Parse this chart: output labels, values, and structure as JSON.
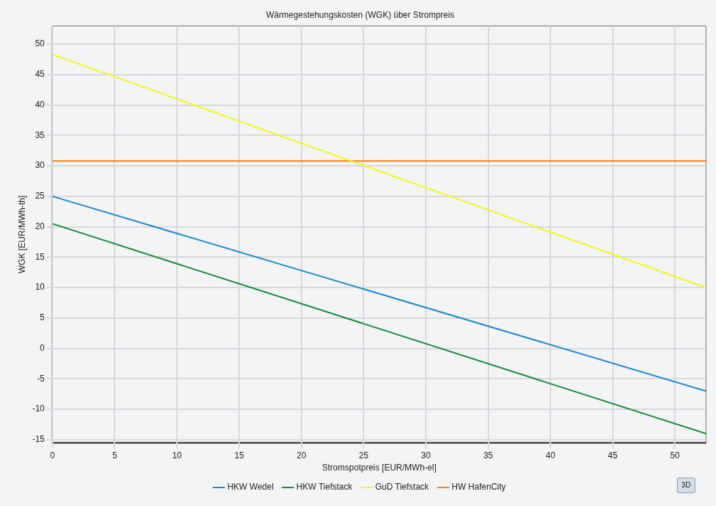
{
  "chart_data": {
    "type": "line",
    "title": "Wärmegestehungskosten (WGK) über Strompreis",
    "xlabel": "Stromspotpreis [EUR/MWh-el]",
    "ylabel": "WGK [EUR/MWh-th]",
    "x": [
      0,
      52.5
    ],
    "series": [
      {
        "name": "HKW Wedel",
        "color": "#1f88c9",
        "values": [
          25,
          -7
        ]
      },
      {
        "name": "HKW Tiefstack",
        "color": "#1a8a3c",
        "values": [
          20.5,
          -14
        ]
      },
      {
        "name": "GuD Tiefstack",
        "color": "#f5f51a",
        "values": [
          48.3,
          10
        ]
      },
      {
        "name": "HW HafenCity",
        "color": "#f5820f",
        "values": [
          30.8,
          30.8
        ]
      }
    ],
    "xlim": [
      0,
      52.5
    ],
    "xticks": [
      0,
      5,
      10,
      15,
      20,
      25,
      30,
      35,
      40,
      45,
      50
    ],
    "ylim": [
      -15.5,
      53
    ],
    "yticks": [
      -15,
      -10,
      -5,
      0,
      5,
      10,
      15,
      20,
      25,
      30,
      35,
      40,
      45,
      50
    ],
    "grid": true,
    "legend": "bottom",
    "marker": "none",
    "line_style": "solid",
    "annotations": [
      "3D"
    ]
  }
}
